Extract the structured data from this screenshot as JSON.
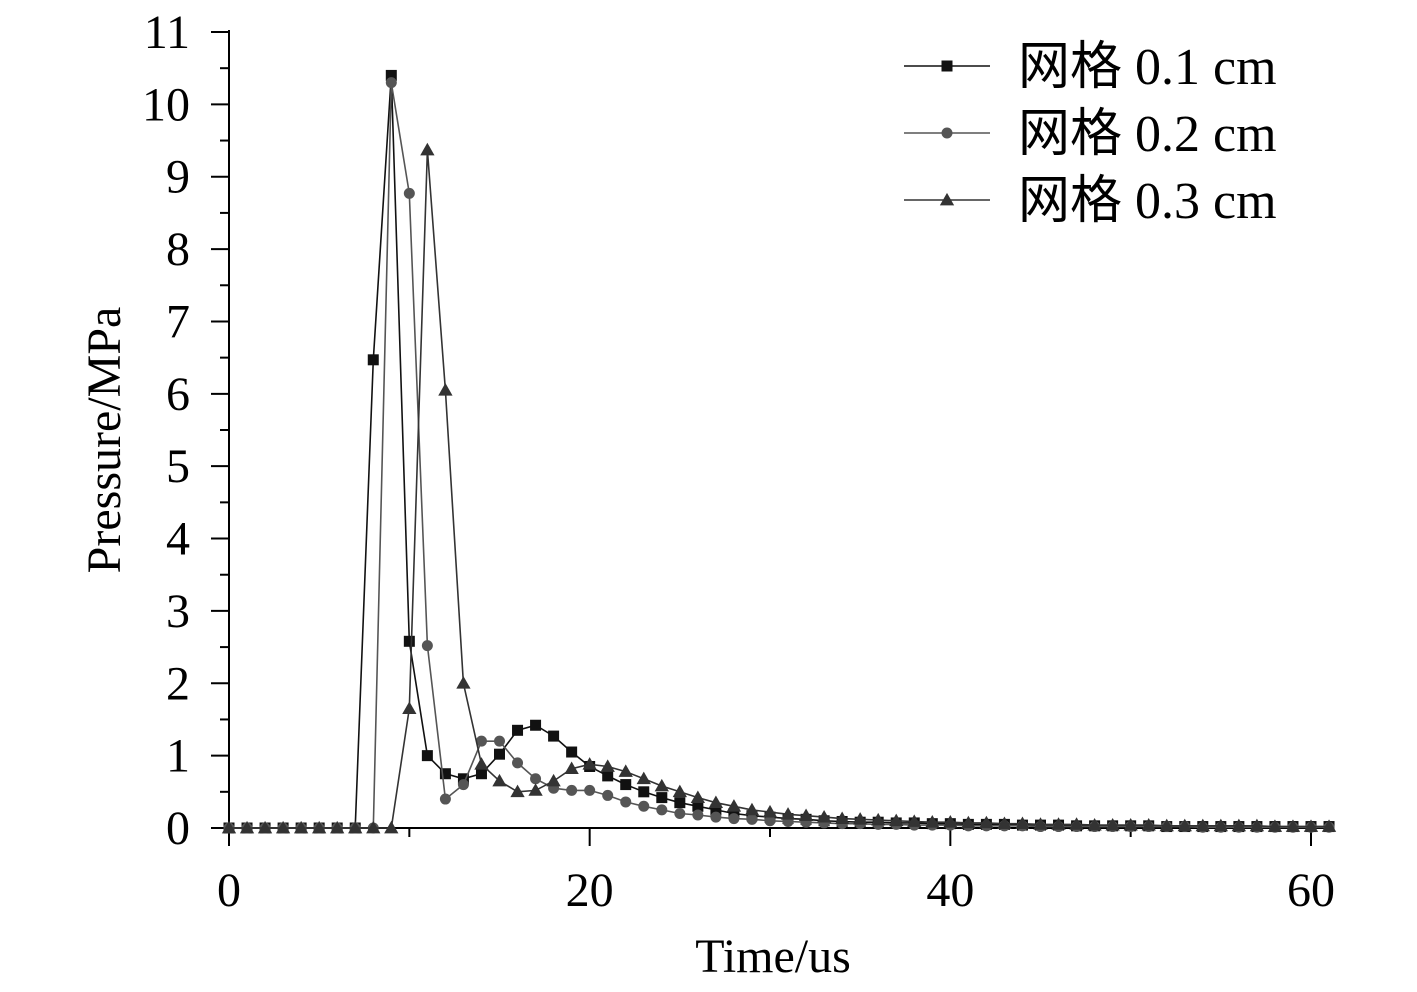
{
  "chart_data": {
    "type": "line",
    "xlabel": "Time/us",
    "ylabel": "Pressure/MPa",
    "xlim": [
      0,
      60
    ],
    "ylim": [
      0,
      11
    ],
    "xticks": [
      "0",
      "20",
      "40",
      "60"
    ],
    "yticks": [
      "0",
      "1",
      "2",
      "3",
      "4",
      "5",
      "6",
      "7",
      "8",
      "9",
      "10",
      "11"
    ],
    "grid": false,
    "legend_position": "top-right",
    "x": [
      0,
      1,
      2,
      3,
      4,
      5,
      6,
      7,
      8,
      9,
      10,
      11,
      12,
      13,
      14,
      15,
      16,
      17,
      18,
      19,
      20,
      21,
      22,
      23,
      24,
      25,
      26,
      27,
      28,
      29,
      30,
      31,
      32,
      33,
      34,
      35,
      36,
      37,
      38,
      39,
      40,
      41,
      42,
      43,
      44,
      45,
      46,
      47,
      48,
      49,
      50,
      51,
      52,
      53,
      54,
      55,
      56,
      57,
      58,
      59,
      60,
      61
    ],
    "series": [
      {
        "name": "网格 0.1 cm",
        "marker": "square",
        "color": "#111111",
        "values": [
          0,
          0,
          0,
          0,
          0,
          0,
          0,
          0,
          6.47,
          10.4,
          2.58,
          1.0,
          0.75,
          0.68,
          0.75,
          1.02,
          1.35,
          1.42,
          1.27,
          1.05,
          0.85,
          0.72,
          0.6,
          0.5,
          0.42,
          0.35,
          0.3,
          0.25,
          0.2,
          0.17,
          0.15,
          0.13,
          0.12,
          0.1,
          0.09,
          0.08,
          0.08,
          0.07,
          0.07,
          0.06,
          0.06,
          0.05,
          0.05,
          0.05,
          0.04,
          0.04,
          0.04,
          0.03,
          0.03,
          0.03,
          0.03,
          0.03,
          0.02,
          0.02,
          0.02,
          0.02,
          0.02,
          0.02,
          0.02,
          0.02,
          0.02,
          0.02
        ]
      },
      {
        "name": "网格 0.2 cm",
        "marker": "circle",
        "color": "#555555",
        "values": [
          0,
          0,
          0,
          0,
          0,
          0,
          0,
          0,
          0,
          10.3,
          8.77,
          2.52,
          0.4,
          0.6,
          1.2,
          1.2,
          0.9,
          0.68,
          0.55,
          0.52,
          0.52,
          0.45,
          0.36,
          0.3,
          0.25,
          0.2,
          0.18,
          0.15,
          0.13,
          0.12,
          0.1,
          0.09,
          0.08,
          0.07,
          0.06,
          0.06,
          0.05,
          0.05,
          0.04,
          0.04,
          0.04,
          0.03,
          0.03,
          0.03,
          0.03,
          0.02,
          0.02,
          0.02,
          0.02,
          0.02,
          0.02,
          0.02,
          0.02,
          0.02,
          0.01,
          0.01,
          0.01,
          0.01,
          0.01,
          0.01,
          0.01,
          0.01
        ]
      },
      {
        "name": "网格 0.3 cm",
        "marker": "triangle",
        "color": "#333333",
        "values": [
          0,
          0,
          0,
          0,
          0,
          0,
          0,
          0,
          0,
          0,
          1.65,
          9.37,
          6.05,
          2.0,
          0.88,
          0.65,
          0.5,
          0.52,
          0.65,
          0.82,
          0.88,
          0.85,
          0.78,
          0.68,
          0.58,
          0.5,
          0.42,
          0.35,
          0.3,
          0.25,
          0.22,
          0.19,
          0.17,
          0.15,
          0.13,
          0.12,
          0.11,
          0.1,
          0.09,
          0.08,
          0.08,
          0.07,
          0.07,
          0.06,
          0.06,
          0.05,
          0.05,
          0.05,
          0.04,
          0.04,
          0.04,
          0.04,
          0.03,
          0.03,
          0.03,
          0.03,
          0.03,
          0.03,
          0.02,
          0.02,
          0.02,
          0.02
        ]
      }
    ]
  }
}
